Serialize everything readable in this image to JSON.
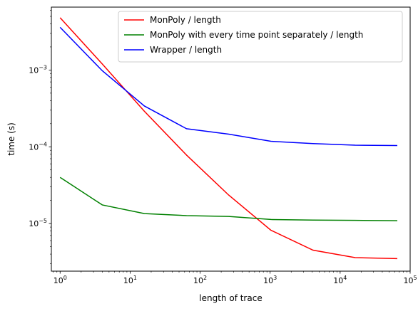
{
  "chart_data": {
    "type": "line",
    "title": "",
    "xlabel": "length of trace",
    "ylabel": "time (s)",
    "xscale": "log",
    "yscale": "log",
    "xlim": [
      0.75,
      100000
    ],
    "ylim": [
      2.4e-06,
      0.0066
    ],
    "grid": false,
    "legend_position": "top-right",
    "x_ticks": [
      {
        "value": 1,
        "base": "10",
        "exp": "0"
      },
      {
        "value": 10,
        "base": "10",
        "exp": "1"
      },
      {
        "value": 100,
        "base": "10",
        "exp": "2"
      },
      {
        "value": 1000,
        "base": "10",
        "exp": "3"
      },
      {
        "value": 10000,
        "base": "10",
        "exp": "4"
      },
      {
        "value": 100000,
        "base": "10",
        "exp": "5"
      }
    ],
    "y_ticks": [
      {
        "value": 1e-05,
        "base": "10",
        "exp": "−5"
      },
      {
        "value": 0.0001,
        "base": "10",
        "exp": "−4"
      },
      {
        "value": 0.001,
        "base": "10",
        "exp": "−3"
      }
    ],
    "x": [
      1,
      4,
      16,
      64,
      256,
      1024,
      4096,
      16384,
      65536
    ],
    "series": [
      {
        "name": "MonPoly / length",
        "color": "#ff0000",
        "values": [
          0.0048,
          0.0012,
          0.00029,
          7.8e-05,
          2.35e-05,
          8.2e-06,
          4.5e-06,
          3.6e-06,
          3.5e-06
        ]
      },
      {
        "name": "MonPoly with every time point separately / length",
        "color": "#008000",
        "values": [
          4e-05,
          1.75e-05,
          1.35e-05,
          1.27e-05,
          1.24e-05,
          1.13e-05,
          1.11e-05,
          1.1e-05,
          1.09e-05
        ]
      },
      {
        "name": "Wrapper / length",
        "color": "#0000ff",
        "values": [
          0.0036,
          0.00098,
          0.00034,
          0.000172,
          0.000146,
          0.000118,
          0.00011,
          0.000105,
          0.000104
        ]
      }
    ]
  }
}
